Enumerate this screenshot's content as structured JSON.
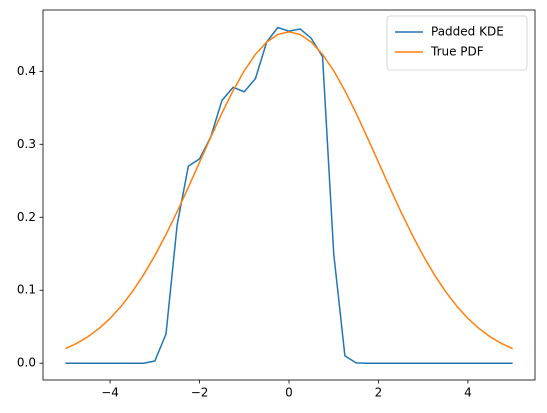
{
  "chart_data": {
    "type": "line",
    "x": [
      -5,
      -4.75,
      -4.5,
      -4.25,
      -4,
      -3.75,
      -3.5,
      -3.25,
      -3,
      -2.75,
      -2.5,
      -2.25,
      -2,
      -1.75,
      -1.5,
      -1.25,
      -1,
      -0.75,
      -0.5,
      -0.25,
      0,
      0.25,
      0.5,
      0.75,
      1,
      1.25,
      1.5,
      1.75,
      2,
      2.25,
      2.5,
      2.75,
      3,
      3.25,
      3.5,
      3.75,
      4,
      4.25,
      4.5,
      4.75,
      5
    ],
    "series": [
      {
        "name": "Padded KDE",
        "color": "#1f77b4",
        "values": [
          0,
          0,
          0,
          0,
          0,
          0,
          0,
          0,
          0.003,
          0.04,
          0.19,
          0.27,
          0.28,
          0.31,
          0.36,
          0.378,
          0.372,
          0.39,
          0.44,
          0.46,
          0.455,
          0.458,
          0.445,
          0.42,
          0.15,
          0.01,
          0.0005,
          0,
          0,
          0,
          0,
          0,
          0,
          0,
          0,
          0,
          0,
          0,
          0,
          0,
          0
        ]
      },
      {
        "name": "True PDF",
        "color": "#ff7f0e",
        "values": [
          0.0199,
          0.0271,
          0.0361,
          0.0475,
          0.0614,
          0.0783,
          0.0982,
          0.1213,
          0.1474,
          0.1764,
          0.2078,
          0.2411,
          0.2754,
          0.3096,
          0.3427,
          0.3734,
          0.4007,
          0.4232,
          0.44,
          0.4505,
          0.454,
          0.4505,
          0.44,
          0.4232,
          0.4007,
          0.3734,
          0.3427,
          0.3096,
          0.2754,
          0.2411,
          0.2078,
          0.1764,
          0.1474,
          0.1213,
          0.0982,
          0.0783,
          0.0614,
          0.0475,
          0.0361,
          0.0271,
          0.0199
        ]
      }
    ],
    "xlim": [
      -5.5,
      5.5
    ],
    "ylim": [
      -0.023,
      0.484
    ],
    "xticks": [
      {
        "value": -4,
        "label": "−4"
      },
      {
        "value": -2,
        "label": "−2"
      },
      0,
      2,
      4
    ],
    "yticks": [
      {
        "value": 0,
        "label": "0.0"
      },
      0.1,
      0.2,
      0.3,
      0.4
    ],
    "grid": false,
    "legend": "upper-right"
  }
}
